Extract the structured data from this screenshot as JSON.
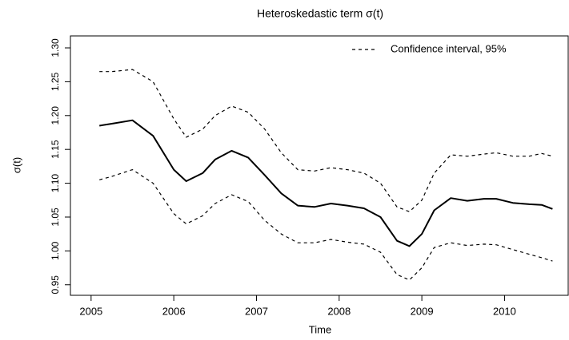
{
  "chart_data": {
    "type": "line",
    "title": "Heteroskedastic term σ(t)",
    "x_label": "Time",
    "y_label": "σ(t)",
    "x": [
      2005.1,
      2005.25,
      2005.5,
      2005.75,
      2006.0,
      2006.15,
      2006.35,
      2006.5,
      2006.7,
      2006.9,
      2007.1,
      2007.3,
      2007.5,
      2007.7,
      2007.9,
      2008.1,
      2008.3,
      2008.5,
      2008.7,
      2008.85,
      2009.0,
      2009.15,
      2009.35,
      2009.55,
      2009.75,
      2009.9,
      2010.1,
      2010.3,
      2010.45,
      2010.58
    ],
    "series": [
      {
        "color": "#000000",
        "values": [
          1.185,
          1.188,
          1.193,
          1.17,
          1.12,
          1.103,
          1.115,
          1.135,
          1.148,
          1.138,
          1.112,
          1.085,
          1.067,
          1.065,
          1.07,
          1.067,
          1.063,
          1.05,
          1.015,
          1.007,
          1.025,
          1.06,
          1.078,
          1.074,
          1.077,
          1.077,
          1.071,
          1.069,
          1.068,
          1.062
        ]
      }
    ],
    "confidence_interval": {
      "name": "Confidence interval, 95%",
      "color": "#000000",
      "upper": [
        1.265,
        1.265,
        1.268,
        1.25,
        1.195,
        1.168,
        1.18,
        1.2,
        1.214,
        1.205,
        1.18,
        1.145,
        1.12,
        1.118,
        1.123,
        1.12,
        1.115,
        1.1,
        1.065,
        1.058,
        1.075,
        1.115,
        1.142,
        1.14,
        1.143,
        1.145,
        1.14,
        1.14,
        1.144,
        1.14
      ],
      "lower": [
        1.105,
        1.11,
        1.12,
        1.1,
        1.055,
        1.04,
        1.052,
        1.07,
        1.083,
        1.073,
        1.045,
        1.025,
        1.012,
        1.012,
        1.017,
        1.013,
        1.01,
        0.998,
        0.965,
        0.957,
        0.975,
        1.005,
        1.012,
        1.008,
        1.01,
        1.009,
        1.002,
        0.995,
        0.99,
        0.985
      ]
    },
    "xlim": [
      2004.75,
      2010.77
    ],
    "xticks": [
      2005,
      2006,
      2007,
      2008,
      2009,
      2010
    ],
    "ylim": [
      0.9344,
      1.3177
    ],
    "yticks": [
      0.95,
      {
        "value": 1.0,
        "label": "1.00"
      },
      1.05,
      {
        "value": 1.1,
        "label": "1.10"
      },
      1.15,
      {
        "value": 1.2,
        "label": "1.20"
      },
      1.25,
      {
        "value": 1.3,
        "label": "1.30"
      }
    ],
    "legend": "top-right",
    "grid": false
  }
}
